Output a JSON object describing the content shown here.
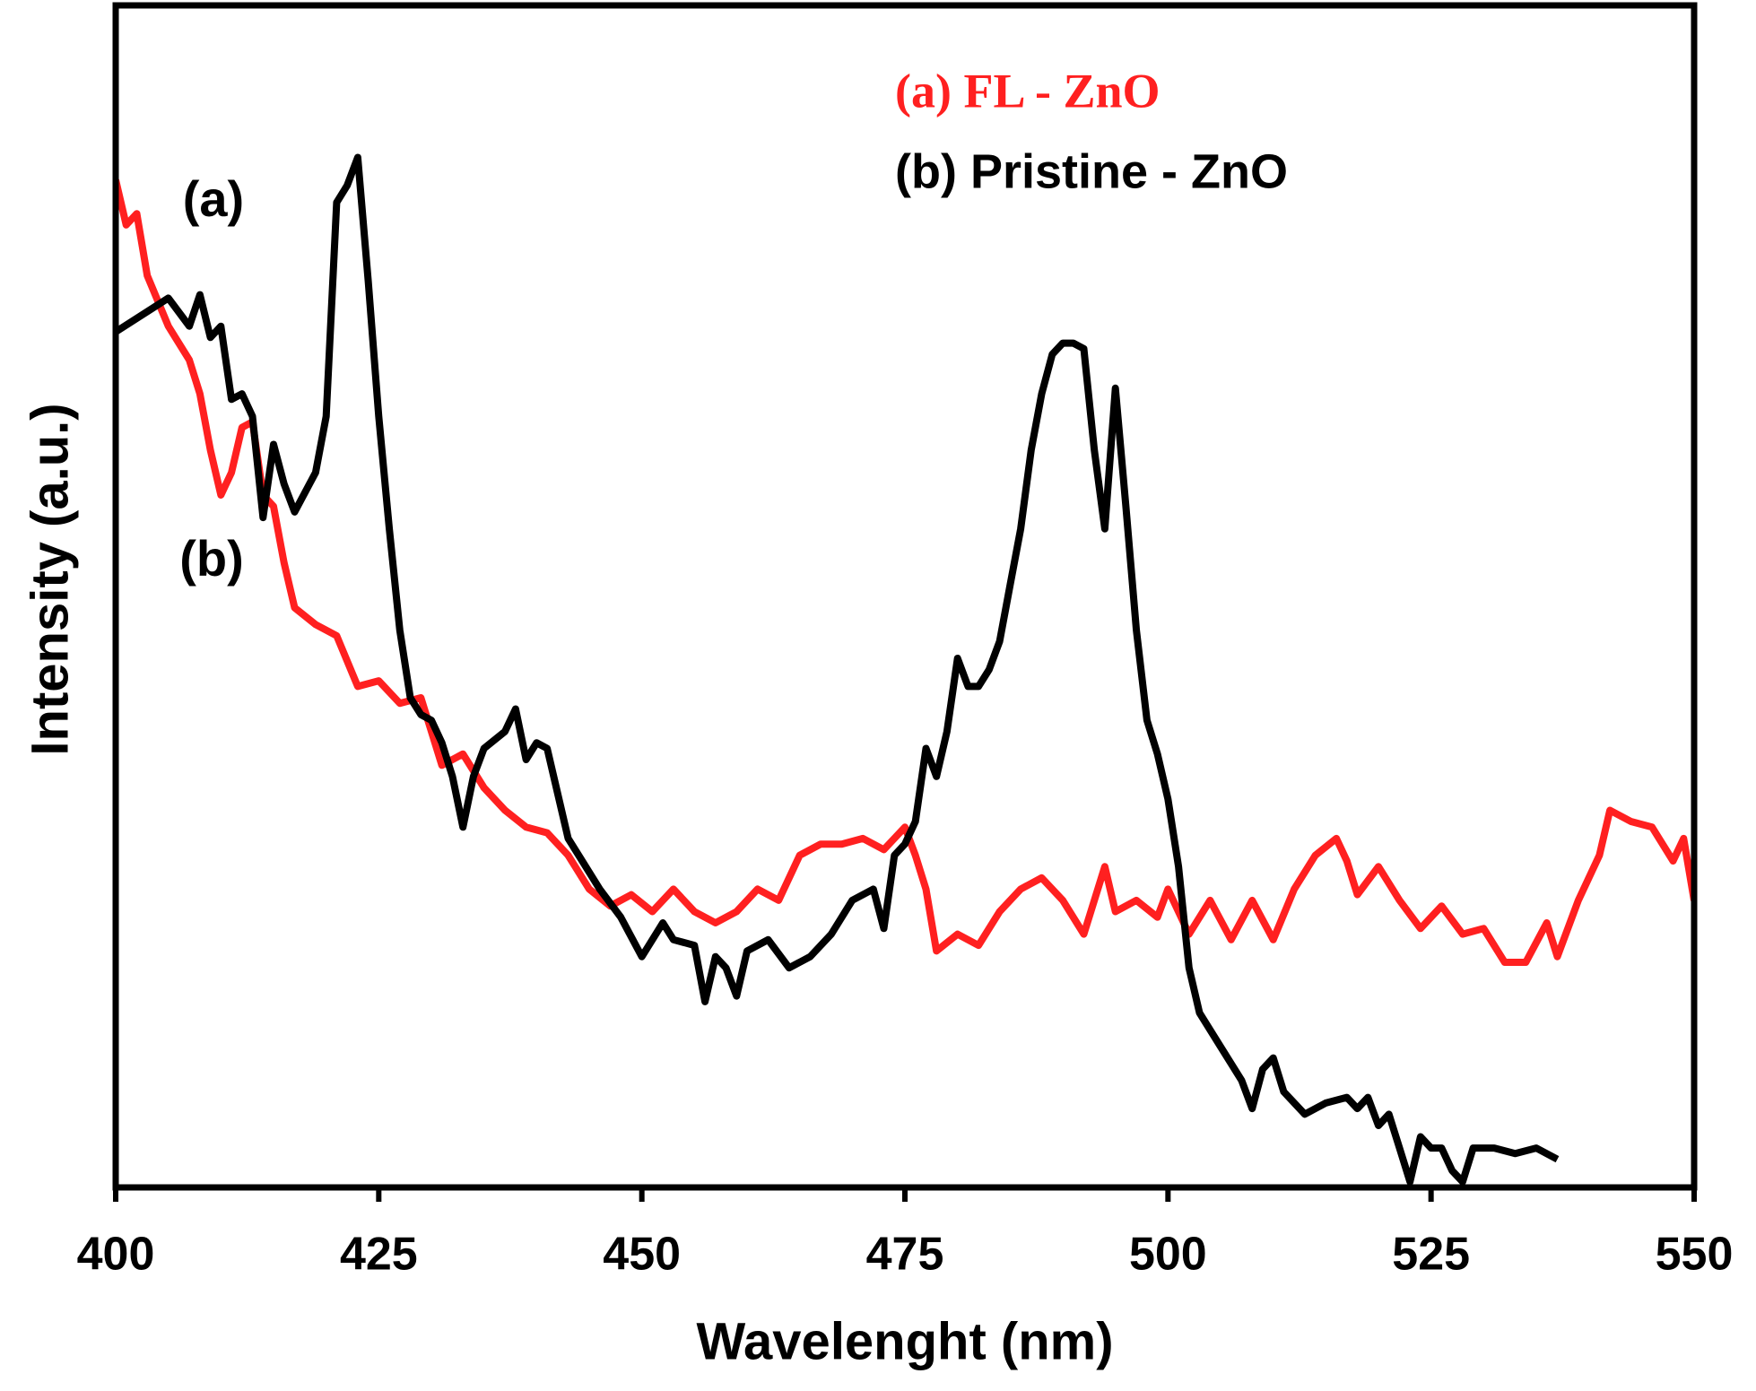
{
  "chart_data": {
    "type": "line",
    "xlabel": "Wavelenght (nm)",
    "ylabel": "Intensity (a.u.)",
    "annotations": [
      "(a)",
      "(b)"
    ],
    "xlim": [
      400,
      550
    ],
    "xticks": [
      400,
      425,
      450,
      475,
      500,
      525,
      550
    ],
    "ylim": [
      0,
      105
    ],
    "series": [
      {
        "name": "(a) FL - ZnO",
        "color": "#ff2020",
        "x": [
          400,
          401,
          402,
          403,
          405,
          407,
          408,
          409,
          410,
          411,
          412,
          413,
          414,
          415,
          416,
          417,
          419,
          421,
          423,
          425,
          427,
          429,
          430,
          431,
          433,
          435,
          437,
          439,
          441,
          443,
          445,
          447,
          449,
          451,
          453,
          455,
          457,
          459,
          461,
          463,
          465,
          467,
          469,
          471,
          473,
          475,
          476,
          477,
          478,
          480,
          482,
          484,
          486,
          488,
          490,
          492,
          494,
          495,
          497,
          499,
          500,
          502,
          504,
          506,
          508,
          510,
          512,
          514,
          516,
          517,
          518,
          520,
          522,
          524,
          526,
          528,
          530,
          532,
          534,
          536,
          537,
          539,
          541,
          542,
          544,
          546,
          548,
          549,
          550
        ],
        "values": [
          89.5,
          85.5,
          86.5,
          81,
          76.5,
          73.5,
          70.5,
          65.5,
          61.5,
          63.5,
          67.5,
          68,
          61.5,
          60.5,
          55.5,
          51.5,
          50,
          49,
          44.5,
          45,
          43,
          43.5,
          40.5,
          37.5,
          38.5,
          35.5,
          33.5,
          32,
          31.5,
          29.5,
          26.5,
          25,
          26,
          24.5,
          26.5,
          24.5,
          23.5,
          24.5,
          26.5,
          25.5,
          29.5,
          30.5,
          30.5,
          31,
          30,
          32,
          29.5,
          26.5,
          21,
          22.5,
          21.5,
          24.5,
          26.5,
          27.5,
          25.5,
          22.5,
          28.5,
          24.5,
          25.5,
          24,
          26.5,
          22.5,
          25.5,
          22,
          25.5,
          22,
          26.5,
          29.5,
          31,
          29,
          26,
          28.5,
          25.5,
          23,
          25,
          22.5,
          23,
          20,
          20,
          23.5,
          20.5,
          25.5,
          29.5,
          33.5,
          32.5,
          32,
          29,
          31,
          25.5
        ]
      },
      {
        "name": "(b) Pristine - ZnO",
        "color": "#000000",
        "x": [
          400,
          405,
          407,
          408,
          409,
          410,
          411,
          412,
          413,
          414,
          415,
          416,
          417,
          419,
          420,
          421,
          422,
          423,
          424,
          425,
          426,
          427,
          428,
          429,
          430,
          431,
          432,
          433,
          434,
          435,
          437,
          438,
          439,
          440,
          441,
          442,
          443,
          444,
          446,
          448,
          450,
          452,
          453,
          455,
          456,
          457,
          458,
          459,
          460,
          462,
          464,
          466,
          468,
          470,
          472,
          473,
          474,
          475,
          476,
          477,
          478,
          479,
          480,
          481,
          482,
          483,
          484,
          485,
          486,
          487,
          488,
          489,
          490,
          491,
          492,
          493,
          494,
          495,
          496,
          497,
          498,
          499,
          500,
          501,
          502,
          503,
          505,
          507,
          508,
          509,
          510,
          511,
          513,
          515,
          517,
          518,
          519,
          520,
          521,
          522,
          523,
          524,
          525,
          526,
          527,
          528,
          529,
          531,
          533,
          535,
          537
        ],
        "values": [
          76,
          79,
          76.5,
          79.3,
          75.5,
          76.5,
          70,
          70.5,
          68.5,
          59.5,
          66,
          62.5,
          60,
          63.5,
          68.5,
          87.5,
          89,
          91.5,
          80.5,
          68.5,
          58.5,
          49.5,
          43.5,
          42,
          41.5,
          39.5,
          36.5,
          32,
          36.5,
          39,
          40.5,
          42.5,
          38,
          39.5,
          39,
          35,
          31,
          29.5,
          26.5,
          24,
          20.5,
          23.5,
          22,
          21.5,
          16.5,
          20.5,
          19.5,
          17,
          21,
          22,
          19.5,
          20.5,
          22.5,
          25.5,
          26.5,
          23,
          29.5,
          30.5,
          32.5,
          39,
          36.5,
          40.5,
          47,
          44.5,
          44.5,
          46,
          48.5,
          53.5,
          58.5,
          65.5,
          70.5,
          74,
          75,
          75,
          74.5,
          65.5,
          58.5,
          71,
          60.5,
          49.5,
          41.5,
          38.5,
          34.5,
          28.5,
          19.5,
          15.5,
          12.5,
          9.5,
          7,
          10.5,
          11.5,
          8.5,
          6.5,
          7.5,
          8,
          7,
          8,
          5.5,
          6.5,
          3.5,
          0.5,
          4.5,
          3.5,
          3.5,
          1.5,
          0.5,
          3.5,
          3.5,
          3,
          3.5,
          2.5
        ]
      }
    ]
  }
}
